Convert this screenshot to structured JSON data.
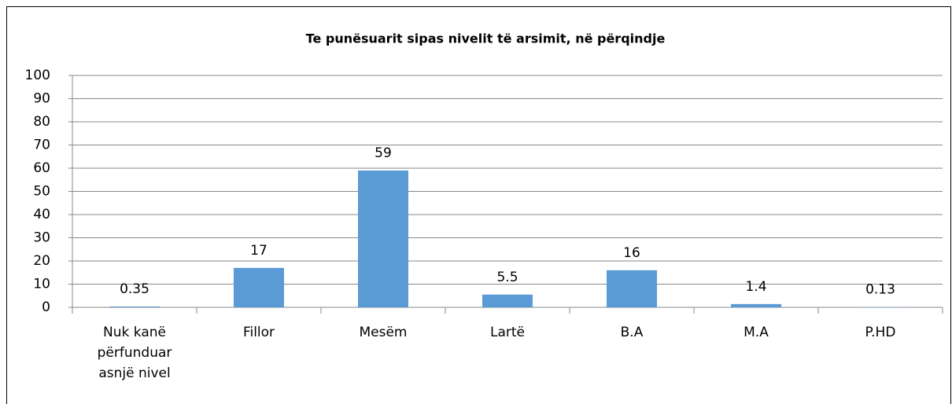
{
  "chart_data": {
    "type": "bar",
    "title": "Te punësuarit sipas nivelit të arsimit, në përqindje",
    "categories": [
      "Nuk kanë përfunduar asnjë nivel",
      "Fillor",
      "Mesëm",
      "Lartë",
      "B.A",
      "M.A",
      "P.HD"
    ],
    "values": [
      0.35,
      17,
      59,
      5.5,
      16,
      1.4,
      0.13
    ],
    "color": "#5b9bd5",
    "ylim": [
      0,
      100
    ],
    "yticks": [
      0,
      10,
      20,
      30,
      40,
      50,
      60,
      70,
      80,
      90,
      100
    ],
    "grid": true
  }
}
